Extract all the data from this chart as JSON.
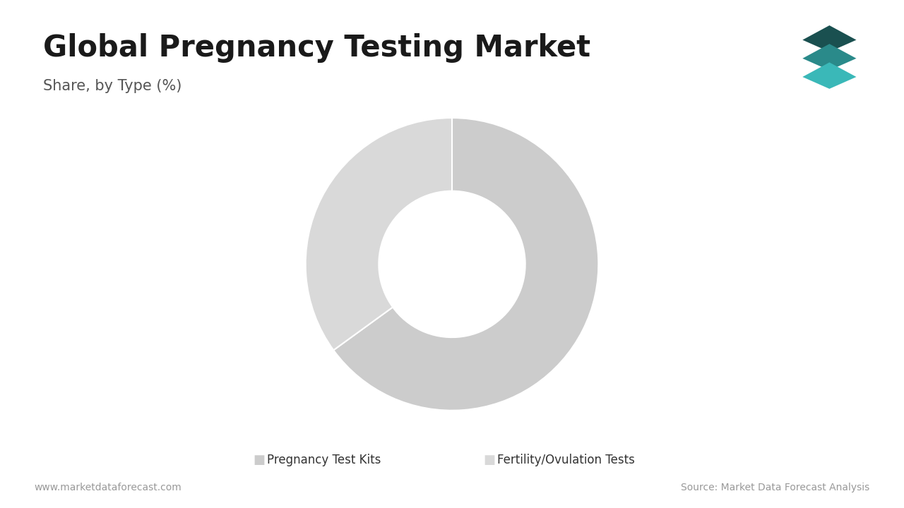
{
  "title": "Global Pregnancy Testing Market",
  "subtitle": "Share, by Type (%)",
  "segments": [
    {
      "label": "Pregnancy Test Kits",
      "value": 65,
      "color": "#cccccc"
    },
    {
      "label": "Fertility/Ovulation Tests",
      "value": 35,
      "color": "#d9d9d9"
    }
  ],
  "wedge_edge_color": "#ffffff",
  "wedge_linewidth": 1.5,
  "donut_hole": 0.55,
  "background_color": "#ffffff",
  "title_fontsize": 30,
  "subtitle_fontsize": 15,
  "title_color": "#1a1a1a",
  "subtitle_color": "#555555",
  "accent_color": "#2a8a8a",
  "left_bar_color": "#2a8a8a",
  "footer_left": "www.marketdataforecast.com",
  "footer_right": "Source: Market Data Forecast Analysis",
  "footer_fontsize": 10,
  "footer_color": "#999999",
  "legend_fontsize": 12,
  "legend_color": "#333333",
  "icon_colors": [
    "#1a5050",
    "#2a8a8a",
    "#3ab8b8"
  ]
}
